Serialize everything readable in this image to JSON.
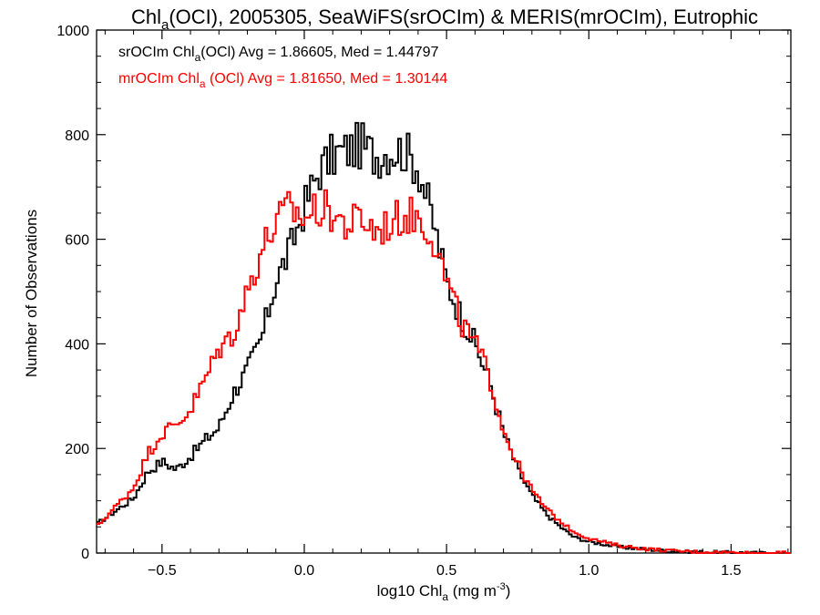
{
  "chart_data": {
    "type": "histogram-step",
    "title": {
      "main": "Chl",
      "main_sub": "a",
      "rest": "(OCI), 2005305, SeaWiFS(srOCIm) & MERIS(mrOCIm), Eutrophic"
    },
    "xlabel": {
      "pre": "log10 Chl",
      "sub": "a",
      "post": " (mg m",
      "sup": "-3",
      "end": ")"
    },
    "ylabel": "Number of Observations",
    "xlim": [
      -0.73,
      1.71
    ],
    "ylim": [
      0,
      1000
    ],
    "x_ticks": [
      -0.5,
      0.0,
      0.5,
      1.0,
      1.5
    ],
    "x_tick_labels": [
      "−0.5",
      "0.0",
      "0.5",
      "1.0",
      "1.5"
    ],
    "y_ticks": [
      0,
      200,
      400,
      600,
      800,
      1000
    ],
    "y_tick_labels": [
      "0",
      "200",
      "400",
      "600",
      "800",
      "1000"
    ],
    "legend_placement": "top-left",
    "series": [
      {
        "name": "srOCIm",
        "color": "#000000",
        "label": {
          "pre": "srOCIm Chl",
          "sub": "a",
          "post": "(OCl) Avg = 1.86605, Med = 1.44797"
        },
        "x": [
          -0.73,
          -0.6,
          -0.55,
          -0.5,
          -0.45,
          -0.4,
          -0.35,
          -0.3,
          -0.25,
          -0.2,
          -0.15,
          -0.1,
          -0.05,
          0.0,
          0.05,
          0.1,
          0.15,
          0.2,
          0.25,
          0.3,
          0.35,
          0.4,
          0.45,
          0.5,
          0.55,
          0.6,
          0.65,
          0.7,
          0.75,
          0.8,
          0.85,
          0.9,
          0.95,
          1.0,
          1.1,
          1.2,
          1.3,
          1.4,
          1.5,
          1.6,
          1.71
        ],
        "values": [
          55,
          105,
          155,
          175,
          160,
          185,
          215,
          240,
          305,
          350,
          410,
          520,
          580,
          660,
          730,
          760,
          770,
          780,
          760,
          770,
          770,
          740,
          640,
          520,
          455,
          400,
          330,
          230,
          160,
          110,
          75,
          50,
          30,
          22,
          12,
          7,
          3,
          2,
          1,
          0,
          0
        ]
      },
      {
        "name": "mrOCIm",
        "color": "#ff0000",
        "label": {
          "pre": "mrOCIm Chl",
          "sub": "a",
          "post": " (OCl) Avg = 1.81650, Med = 1.30144"
        },
        "x": [
          -0.73,
          -0.6,
          -0.55,
          -0.5,
          -0.45,
          -0.4,
          -0.35,
          -0.3,
          -0.25,
          -0.2,
          -0.15,
          -0.1,
          -0.05,
          0.0,
          0.05,
          0.1,
          0.15,
          0.2,
          0.25,
          0.3,
          0.35,
          0.4,
          0.45,
          0.5,
          0.55,
          0.6,
          0.65,
          0.7,
          0.75,
          0.8,
          0.85,
          0.9,
          0.95,
          1.0,
          1.1,
          1.2,
          1.3,
          1.4,
          1.5,
          1.6,
          1.71
        ],
        "values": [
          50,
          125,
          190,
          230,
          245,
          275,
          330,
          390,
          420,
          500,
          580,
          630,
          660,
          640,
          660,
          650,
          625,
          640,
          615,
          630,
          645,
          645,
          610,
          520,
          440,
          400,
          340,
          235,
          170,
          120,
          85,
          60,
          40,
          28,
          15,
          8,
          4,
          2,
          1,
          0,
          0
        ]
      }
    ]
  }
}
